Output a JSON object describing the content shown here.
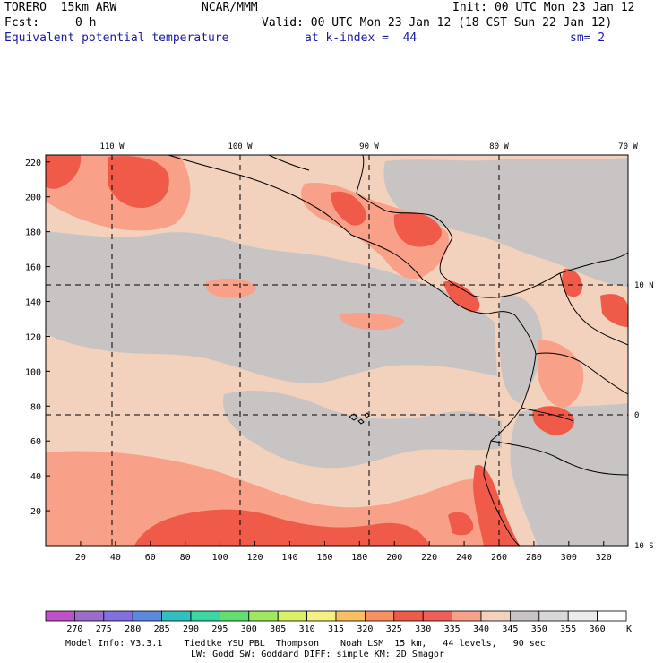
{
  "header": {
    "model": "TORERO  15km ARW",
    "center": "NCAR/MMM",
    "init": "Init: 00 UTC Mon 23 Jan 12",
    "fcst_label": "Fcst:",
    "fcst_value": "0 h",
    "valid": "Valid: 00 UTC Mon 23 Jan 12 (18 CST Sun 22 Jan 12)",
    "field": "Equivalent potential temperature",
    "level": "at k-index =  44",
    "smooth": "sm= 2"
  },
  "map": {
    "lon_labels": [
      "110 W",
      "100 W",
      "90 W",
      "80 W",
      "70 W"
    ],
    "lat_labels": [
      "10 N",
      "0",
      "10 S"
    ],
    "y_ticks": [
      "220",
      "200",
      "180",
      "160",
      "140",
      "120",
      "100",
      "80",
      "60",
      "40",
      "20"
    ],
    "x_ticks": [
      "20",
      "40",
      "60",
      "80",
      "100",
      "120",
      "140",
      "160",
      "180",
      "200",
      "220",
      "240",
      "260",
      "280",
      "300",
      "320"
    ]
  },
  "colorbar": {
    "levels": [
      "270",
      "275",
      "280",
      "285",
      "290",
      "295",
      "300",
      "305",
      "310",
      "315",
      "320",
      "325",
      "330",
      "335",
      "340",
      "345",
      "350",
      "355",
      "360"
    ],
    "unit": "K",
    "colors": [
      "#c050c8",
      "#9a6ccc",
      "#8070e0",
      "#5a8ae0",
      "#30c0c0",
      "#38d8a0",
      "#60e070",
      "#a0e860",
      "#d8f068",
      "#f8f080",
      "#f8c060",
      "#f89060",
      "#f05a48",
      "#f06058",
      "#f8a088",
      "#f2d2bc",
      "#c8c4c4",
      "#d8d8d8",
      "#ececec",
      "#ffffff"
    ]
  },
  "footer": {
    "line1": "Model Info: V3.3.1    Tiedtke YSU PBL  Thompson    Noah LSM  15 km,   44 levels,   90 sec",
    "line2": "LW: Godd SW: Goddard DIFF: simple KM: 2D Smagor"
  }
}
